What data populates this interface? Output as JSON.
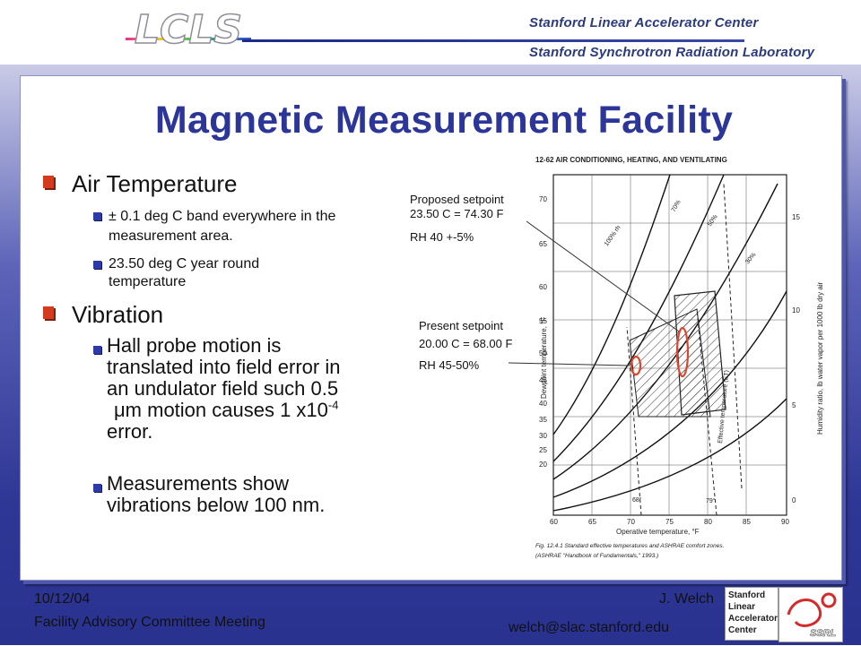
{
  "header": {
    "logo_text": "LCLS",
    "org_line1": "Stanford Linear Accelerator Center",
    "org_line2": "Stanford Synchrotron Radiation Laboratory"
  },
  "slide": {
    "title": "Magnetic Measurement Facility",
    "sections": [
      {
        "heading": "Air Temperature",
        "items": [
          "± 0.1 deg C band everywhere in the measurement area.",
          "23.50 deg C year round temperature"
        ]
      },
      {
        "heading": "Vibration",
        "items": [
          "Hall probe motion is translated into field error in an undulator field such 0.5 μm motion causes 1 x10-4 error.",
          "Measurements show vibrations below 100 nm."
        ]
      }
    ],
    "vib_item1_lines": [
      "Hall probe motion is",
      "translated into field error in",
      "an undulator field such 0.5",
      "μm motion causes 1 x10",
      "-4",
      "error."
    ],
    "air_item1_lines": [
      "± 0.1 deg C band everywhere in the",
      "measurement area."
    ],
    "air_item2_lines": [
      "23.50 deg C year round",
      "temperature"
    ],
    "vib_item2_lines": [
      "Measurements show",
      "vibrations below 100 nm."
    ]
  },
  "chart": {
    "page_header": "12-62   AIR CONDITIONING, HEATING, AND VENTILATING",
    "proposed": [
      "Proposed setpoint",
      "23.50 C = 74.30 F",
      "RH 40 +-5%"
    ],
    "present": [
      "Present setpoint",
      "20.00 C = 68.00 F",
      "RH 45-50%"
    ],
    "y_left_label": "Dewpoint temperature, °F",
    "y_right_label": "Humidity ratio, lb water vapor per 1000 lb dry air",
    "x_label": "Operative temperature, °F",
    "x_ticks": [
      "60",
      "65",
      "70",
      "75",
      "80",
      "85",
      "90"
    ],
    "y_left_ticks": [
      "70",
      "65",
      "60",
      "55",
      "50",
      "45",
      "40",
      "35",
      "30",
      "25",
      "20"
    ],
    "y_right_ticks": [
      "15",
      "10",
      "5",
      "0"
    ],
    "rh_labels": [
      "100% rh",
      "70%",
      "50%",
      "30%"
    ],
    "et_labels": [
      "68°",
      "79°",
      "Effective temperature (ET)"
    ],
    "caption1": "Fig. 12.4.1  Standard effective temperatures and ASHRAE comfort zones.",
    "caption2": "(ASHRAE \"Handbook of Fundamentals,\" 1993.)"
  },
  "footer": {
    "date": "10/12/04",
    "meeting": "Facility Advisory Committee Meeting",
    "author": "J. Welch",
    "email": "welch@slac.stanford.edu",
    "slac_logo_lines": [
      "Stanford",
      "Linear",
      "Accelerator",
      "Center"
    ],
    "ssrl_logo_text": "SSRL"
  },
  "colors": {
    "title": "#2c3598",
    "bullet_level1": "#d63a1e",
    "bullet_level2": "#2e3aa8",
    "setpoint_marker": "#e0452c"
  }
}
